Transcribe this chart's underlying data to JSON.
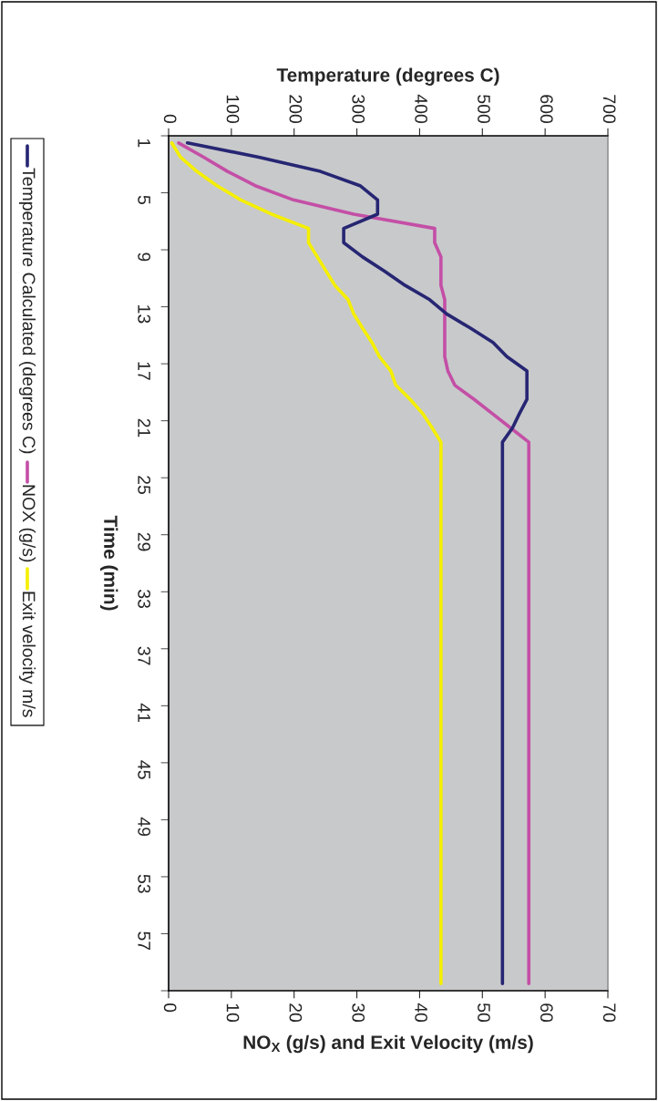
{
  "chart_data": {
    "type": "line",
    "orientation": "horizontal",
    "ylabel": "Time (min)",
    "x2label": "Temperature (degrees C)",
    "xlabel": "NO$_{X}$ (g/s) and Exit Velocity (m/s)",
    "categories": [
      "1",
      null,
      null,
      null,
      "5",
      null,
      null,
      null,
      "9",
      null,
      null,
      null,
      "13",
      null,
      null,
      null,
      "17",
      null,
      null,
      null,
      "21",
      null,
      null,
      null,
      "25",
      null,
      null,
      null,
      "29",
      null,
      null,
      null,
      "33",
      null,
      null,
      null,
      "37",
      null,
      null,
      null,
      "41",
      null,
      null,
      null,
      "45",
      null,
      null,
      null,
      "49",
      null,
      null,
      null,
      "53",
      null,
      null,
      null,
      "57",
      null,
      null,
      null
    ],
    "series": [
      {
        "name": "Temperature Calculated (degrees C)",
        "color": "#262673",
        "axis": "x2",
        "values": [
          30,
          144,
          242,
          305,
          333,
          333,
          279,
          279,
          309,
          344,
          377,
          416,
          443,
          481,
          517,
          539,
          571,
          571,
          571,
          559,
          548,
          532,
          532,
          532,
          532,
          532,
          532,
          532,
          532,
          532,
          532,
          532,
          532,
          532,
          532,
          532,
          532,
          532,
          532,
          532,
          532,
          532,
          532,
          532,
          532,
          532,
          532,
          532,
          532,
          532,
          532,
          532,
          532,
          532,
          532,
          532,
          532,
          532,
          532,
          532
        ]
      },
      {
        "name": "NOX (g/s)",
        "color": "#c44fa6",
        "values": [
          1.6,
          5.6,
          9.4,
          13.8,
          19.9,
          29.5,
          42.4,
          42.4,
          43.4,
          43.4,
          43.4,
          44.0,
          44.0,
          44.0,
          44.0,
          44.0,
          44.5,
          45.6,
          48.7,
          51.6,
          54.5,
          57.4,
          57.4,
          57.4,
          57.4,
          57.4,
          57.4,
          57.4,
          57.4,
          57.4,
          57.4,
          57.4,
          57.4,
          57.4,
          57.4,
          57.4,
          57.4,
          57.4,
          57.4,
          57.4,
          57.4,
          57.4,
          57.4,
          57.4,
          57.4,
          57.4,
          57.4,
          57.4,
          57.4,
          57.4,
          57.4,
          57.4,
          57.4,
          57.4,
          57.4,
          57.4,
          57.4,
          57.4,
          57.4,
          57.4
        ]
      },
      {
        "name": "Exit velocity m/s",
        "color": "#f5ef00",
        "values": [
          0.5,
          1.9,
          4.5,
          7.7,
          11.5,
          16.4,
          22.3,
          22.3,
          23.7,
          25.1,
          26.5,
          28.6,
          29.5,
          30.9,
          32.4,
          33.6,
          35.4,
          36.2,
          38.5,
          40.5,
          42.0,
          43.4,
          43.4,
          43.4,
          43.4,
          43.4,
          43.4,
          43.4,
          43.4,
          43.4,
          43.4,
          43.4,
          43.4,
          43.4,
          43.4,
          43.4,
          43.4,
          43.4,
          43.4,
          43.4,
          43.4,
          43.4,
          43.4,
          43.4,
          43.4,
          43.4,
          43.4,
          43.4,
          43.4,
          43.4,
          43.4,
          43.4,
          43.4,
          43.4,
          43.4,
          43.4,
          43.4,
          43.4,
          43.4,
          43.4
        ]
      }
    ],
    "x2lim": [
      0,
      700
    ],
    "x2ticks": [
      0,
      100,
      200,
      300,
      400,
      500,
      600,
      700
    ],
    "xlim": [
      0,
      70
    ],
    "xticks": [
      0,
      10,
      20,
      30,
      40,
      50,
      60,
      70
    ],
    "grid": false,
    "legend": "left",
    "marker": "none",
    "line_style": "solid"
  }
}
